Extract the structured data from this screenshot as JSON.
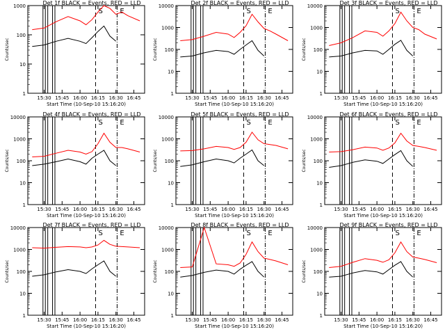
{
  "figure": {
    "colors": {
      "events": "#000000",
      "lld": "#ff0000",
      "axes": "#000000",
      "background": "#ffffff"
    },
    "xlabel": "Start Time (10-Sep-10 15:16:20)",
    "ylabel": "Counts/sec",
    "x_tick_labels": [
      "15:30",
      "15:45",
      "16:00",
      "16:15",
      "16:30",
      "16:45"
    ],
    "markers": {
      "start": "S",
      "end": "E"
    }
  },
  "chart_data": [
    {
      "type": "line",
      "title": "Det 1f BLACK = Events, RED = LLD",
      "ylim": [
        1,
        1000
      ],
      "yscale": "log",
      "y_tick_labels": [
        "1",
        "10",
        "100",
        "1000"
      ],
      "xlim": [
        "15:16:20",
        "16:54:00"
      ],
      "x": [
        "15:20",
        "15:30",
        "15:40",
        "15:50",
        "16:00",
        "16:05",
        "16:10",
        "16:15",
        "16:20",
        "16:25",
        "16:30",
        "16:35",
        "16:40",
        "16:50"
      ],
      "series": [
        {
          "name": "Events",
          "color": "#000000",
          "values": [
            40,
            45,
            60,
            75,
            60,
            50,
            80,
            130,
            200,
            90,
            60,
            null,
            50,
            null
          ]
        },
        {
          "name": "LLD",
          "color": "#ff0000",
          "values": [
            150,
            170,
            280,
            420,
            300,
            220,
            330,
            600,
            1100,
            800,
            500,
            600,
            450,
            300
          ]
        }
      ]
    },
    {
      "type": "line",
      "title": "Det 2f BLACK = Events, RED = LLD",
      "ylim": [
        1,
        10000
      ],
      "yscale": "log",
      "y_tick_labels": [
        "1",
        "10",
        "100",
        "1000",
        "10000"
      ],
      "xlim": [
        "15:16:20",
        "16:54:00"
      ],
      "x": [
        "15:20",
        "15:30",
        "15:40",
        "15:50",
        "16:00",
        "16:05",
        "16:10",
        "16:15",
        "16:20",
        "16:25",
        "16:30",
        "16:35",
        "16:40",
        "16:50"
      ],
      "series": [
        {
          "name": "Events",
          "color": "#000000",
          "values": [
            45,
            50,
            70,
            90,
            80,
            60,
            100,
            160,
            250,
            90,
            50,
            null,
            40,
            null
          ]
        },
        {
          "name": "LLD",
          "color": "#ff0000",
          "values": [
            250,
            280,
            400,
            600,
            500,
            350,
            600,
            1200,
            4000,
            1800,
            900,
            700,
            500,
            250
          ]
        }
      ]
    },
    {
      "type": "line",
      "title": "Det 3f BLACK = Events, RED = LLD",
      "ylim": [
        1,
        10000
      ],
      "yscale": "log",
      "y_tick_labels": [
        "1",
        "10",
        "100",
        "1000",
        "10000"
      ],
      "xlim": [
        "15:16:20",
        "16:54:00"
      ],
      "x": [
        "15:20",
        "15:30",
        "15:40",
        "15:50",
        "16:00",
        "16:05",
        "16:10",
        "16:15",
        "16:20",
        "16:25",
        "16:30",
        "16:35",
        "16:40",
        "16:50"
      ],
      "series": [
        {
          "name": "Events",
          "color": "#000000",
          "values": [
            45,
            50,
            70,
            90,
            85,
            60,
            100,
            170,
            260,
            90,
            50,
            null,
            40,
            null
          ]
        },
        {
          "name": "LLD",
          "color": "#ff0000",
          "values": [
            150,
            200,
            350,
            700,
            600,
            400,
            700,
            1500,
            5000,
            2000,
            1000,
            800,
            500,
            300
          ]
        }
      ]
    },
    {
      "type": "line",
      "title": "Det 4f BLACK = Events, RED = LLD",
      "ylim": [
        1,
        10000
      ],
      "yscale": "log",
      "y_tick_labels": [
        "1",
        "10",
        "100",
        "1000",
        "10000"
      ],
      "xlim": [
        "15:16:20",
        "16:54:00"
      ],
      "x": [
        "15:20",
        "15:30",
        "15:40",
        "15:50",
        "16:00",
        "16:05",
        "16:10",
        "16:15",
        "16:20",
        "16:25",
        "16:30",
        "16:35",
        "16:40",
        "16:50"
      ],
      "series": [
        {
          "name": "Events",
          "color": "#000000",
          "values": [
            60,
            70,
            90,
            120,
            90,
            70,
            130,
            200,
            300,
            100,
            60,
            null,
            50,
            null
          ]
        },
        {
          "name": "LLD",
          "color": "#ff0000",
          "values": [
            150,
            160,
            220,
            300,
            250,
            200,
            260,
            600,
            1800,
            700,
            400,
            400,
            350,
            250
          ]
        }
      ]
    },
    {
      "type": "line",
      "title": "Det 5f BLACK = Events, RED = LLD",
      "ylim": [
        1,
        10000
      ],
      "yscale": "log",
      "y_tick_labels": [
        "1",
        "10",
        "100",
        "1000",
        "10000"
      ],
      "xlim": [
        "15:16:20",
        "16:54:00"
      ],
      "x": [
        "15:20",
        "15:30",
        "15:40",
        "15:50",
        "16:00",
        "16:05",
        "16:10",
        "16:15",
        "16:20",
        "16:25",
        "16:30",
        "16:35",
        "16:40",
        "16:50"
      ],
      "series": [
        {
          "name": "Events",
          "color": "#000000",
          "values": [
            55,
            65,
            90,
            120,
            100,
            80,
            130,
            200,
            310,
            100,
            60,
            null,
            50,
            null
          ]
        },
        {
          "name": "LLD",
          "color": "#ff0000",
          "values": [
            280,
            290,
            350,
            450,
            400,
            330,
            400,
            700,
            2000,
            900,
            600,
            550,
            500,
            350
          ]
        }
      ]
    },
    {
      "type": "line",
      "title": "Det 6f BLACK = Events, RED = LLD",
      "ylim": [
        1,
        10000
      ],
      "yscale": "log",
      "y_tick_labels": [
        "1",
        "10",
        "100",
        "1000",
        "10000"
      ],
      "xlim": [
        "15:16:20",
        "16:54:00"
      ],
      "x": [
        "15:20",
        "15:30",
        "15:40",
        "15:50",
        "16:00",
        "16:05",
        "16:10",
        "16:15",
        "16:20",
        "16:25",
        "16:30",
        "16:35",
        "16:40",
        "16:50"
      ],
      "series": [
        {
          "name": "Events",
          "color": "#000000",
          "values": [
            50,
            60,
            85,
            110,
            95,
            75,
            120,
            190,
            290,
            100,
            55,
            null,
            45,
            null
          ]
        },
        {
          "name": "LLD",
          "color": "#ff0000",
          "values": [
            250,
            260,
            320,
            420,
            380,
            300,
            380,
            650,
            1800,
            800,
            500,
            450,
            400,
            300
          ]
        }
      ]
    },
    {
      "type": "line",
      "title": "Det 7f BLACK = Events, RED = LLD",
      "ylim": [
        1,
        10000
      ],
      "yscale": "log",
      "y_tick_labels": [
        "1",
        "10",
        "100",
        "1000",
        "10000"
      ],
      "xlim": [
        "15:16:20",
        "16:54:00"
      ],
      "x": [
        "15:20",
        "15:30",
        "15:40",
        "15:50",
        "16:00",
        "16:05",
        "16:10",
        "16:15",
        "16:20",
        "16:25",
        "16:30",
        "16:35",
        "16:40",
        "16:50"
      ],
      "series": [
        {
          "name": "Events",
          "color": "#000000",
          "values": [
            60,
            70,
            95,
            120,
            100,
            80,
            130,
            200,
            300,
            100,
            60,
            null,
            50,
            null
          ]
        },
        {
          "name": "LLD",
          "color": "#ff0000",
          "values": [
            1200,
            1150,
            1250,
            1350,
            1300,
            1200,
            1300,
            1600,
            2600,
            1700,
            1400,
            1350,
            1300,
            1200
          ]
        }
      ]
    },
    {
      "type": "line",
      "title": "Det 8f BLACK = Events, RED = LLD",
      "ylim": [
        1,
        10000
      ],
      "yscale": "log",
      "y_tick_labels": [
        "1",
        "10",
        "100",
        "1000",
        "10000"
      ],
      "xlim": [
        "15:16:20",
        "16:54:00"
      ],
      "x": [
        "15:20",
        "15:30",
        "15:40",
        "15:50",
        "16:00",
        "16:05",
        "16:10",
        "16:15",
        "16:20",
        "16:25",
        "16:30",
        "16:35",
        "16:40",
        "16:50"
      ],
      "series": [
        {
          "name": "Events",
          "color": "#000000",
          "values": [
            55,
            65,
            90,
            115,
            100,
            75,
            125,
            190,
            280,
            100,
            55,
            null,
            45,
            null
          ]
        },
        {
          "name": "LLD",
          "color": "#ff0000",
          "values": [
            150,
            160,
            10000,
            220,
            200,
            170,
            240,
            600,
            2200,
            800,
            400,
            350,
            300,
            200
          ]
        }
      ]
    },
    {
      "type": "line",
      "title": "Det 9f BLACK = Events, RED = LLD",
      "ylim": [
        1,
        10000
      ],
      "yscale": "log",
      "y_tick_labels": [
        "1",
        "10",
        "100",
        "1000",
        "10000"
      ],
      "xlim": [
        "15:16:20",
        "16:54:00"
      ],
      "x": [
        "15:20",
        "15:30",
        "15:40",
        "15:50",
        "16:00",
        "16:05",
        "16:10",
        "16:15",
        "16:20",
        "16:25",
        "16:30",
        "16:35",
        "16:40",
        "16:50"
      ],
      "series": [
        {
          "name": "Events",
          "color": "#000000",
          "values": [
            55,
            60,
            85,
            110,
            95,
            75,
            120,
            190,
            280,
            100,
            55,
            null,
            45,
            null
          ]
        },
        {
          "name": "LLD",
          "color": "#ff0000",
          "values": [
            150,
            170,
            260,
            380,
            320,
            260,
            340,
            700,
            2200,
            800,
            450,
            400,
            350,
            250
          ]
        }
      ]
    }
  ]
}
